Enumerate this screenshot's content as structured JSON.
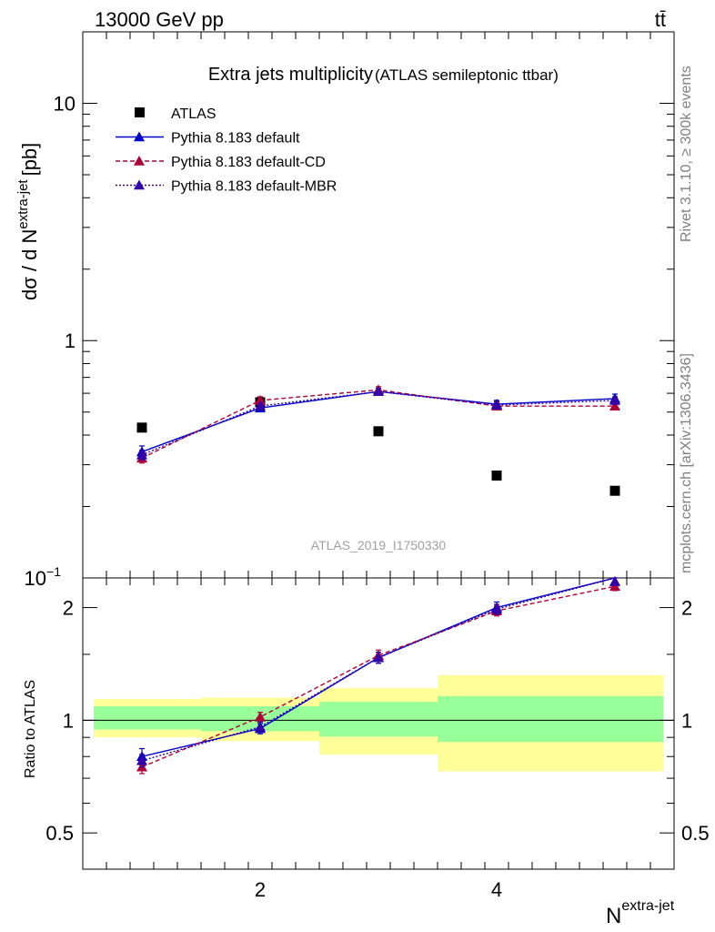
{
  "header": {
    "energy_label": "13000 GeV pp",
    "process_label": "tt̄"
  },
  "side_labels": {
    "rivet": "Rivet 3.1.10, ≥ 300k events",
    "mcplots": "mcplots.cern.ch [arXiv:1306.3436]"
  },
  "chart_data": [
    {
      "type": "scatter",
      "panel": "main",
      "title": "Extra jets multiplicity",
      "subtitle": "(ATLAS semileptonic ttbar)",
      "watermark": "ATLAS_2019_I1750330",
      "xlabel": "N",
      "xlabel_sup": "extra-jet",
      "ylabel": "dσ / d N",
      "ylabel_sup": "extra-jet",
      "ylabel_unit": "[pb]",
      "yscale": "log",
      "xlim": [
        0.5,
        5.5
      ],
      "ylim": [
        0.1,
        20
      ],
      "ytick_labels": [
        {
          "value": 10,
          "label": "10"
        },
        {
          "value": 1,
          "label": "1"
        },
        {
          "value": 0.1,
          "label": "10",
          "sup": "−1"
        }
      ],
      "legend_position": "top-left",
      "x": [
        1,
        2,
        3,
        4,
        5
      ],
      "series": [
        {
          "name": "ATLAS",
          "style": "data",
          "color": "#000000",
          "marker": "square",
          "values": [
            0.43,
            0.55,
            0.415,
            0.27,
            0.233
          ]
        },
        {
          "name": "Pythia 8.183 default",
          "style": "solid",
          "color": "#0000cc",
          "marker": "triangle",
          "values": [
            0.34,
            0.52,
            0.61,
            0.54,
            0.57
          ],
          "errors": [
            0.02,
            0.015,
            0.02,
            0.02,
            0.025
          ]
        },
        {
          "name": "Pythia 8.183 default-CD",
          "style": "dashed",
          "color": "#b0003a",
          "marker": "triangle",
          "values": [
            0.32,
            0.56,
            0.62,
            0.53,
            0.53
          ],
          "errors": [
            0.015,
            0.02,
            0.02,
            0.02,
            0.015
          ]
        },
        {
          "name": "Pythia 8.183 default-MBR",
          "style": "dotted",
          "color": "#3300aa",
          "marker": "triangle",
          "values": [
            0.33,
            0.53,
            0.61,
            0.535,
            0.56
          ],
          "errors": [
            0.015,
            0.015,
            0.02,
            0.02,
            0.02
          ]
        }
      ]
    },
    {
      "type": "line",
      "panel": "ratio",
      "ylabel": "Ratio to ATLAS",
      "xlabel": "N",
      "xlabel_sup": "extra-jet",
      "yscale": "log",
      "xlim": [
        0.5,
        5.5
      ],
      "ylim": [
        0.4,
        2.4
      ],
      "ytick_labels": [
        {
          "value": 0.5,
          "label": "0.5"
        },
        {
          "value": 1,
          "label": "1"
        },
        {
          "value": 2,
          "label": "2"
        }
      ],
      "xtick_labels": [
        {
          "value": 2,
          "label": "2"
        },
        {
          "value": 4,
          "label": "4"
        }
      ],
      "x": [
        1,
        2,
        3,
        4,
        5
      ],
      "bands": {
        "edges": [
          0.5,
          1.5,
          2.5,
          3.5,
          5.5
        ],
        "stat_low": [
          0.945,
          0.935,
          0.905,
          0.875
        ],
        "stat_high": [
          1.09,
          1.09,
          1.12,
          1.16
        ],
        "total_low": [
          0.9,
          0.88,
          0.81,
          0.73
        ],
        "total_high": [
          1.14,
          1.15,
          1.22,
          1.32
        ],
        "stat_color": "#99ff99",
        "total_color": "#ffff99"
      },
      "series": [
        {
          "name": "Pythia 8.183 default",
          "style": "solid",
          "color": "#0000cc",
          "marker": "triangle",
          "values": [
            0.8,
            0.95,
            1.47,
            2.0,
            2.42
          ],
          "errors": [
            0.04,
            0.03,
            0.05,
            0.07,
            0.08
          ]
        },
        {
          "name": "Pythia 8.183 default-CD",
          "style": "dashed",
          "color": "#b0003a",
          "marker": "triangle",
          "values": [
            0.75,
            1.02,
            1.49,
            1.96,
            2.28
          ],
          "errors": [
            0.03,
            0.03,
            0.05,
            0.06,
            0.06
          ]
        },
        {
          "name": "Pythia 8.183 default-MBR",
          "style": "dotted",
          "color": "#3300aa",
          "marker": "triangle",
          "values": [
            0.78,
            0.96,
            1.47,
            1.98,
            2.4
          ],
          "errors": [
            0.03,
            0.03,
            0.05,
            0.06,
            0.07
          ]
        }
      ]
    }
  ]
}
